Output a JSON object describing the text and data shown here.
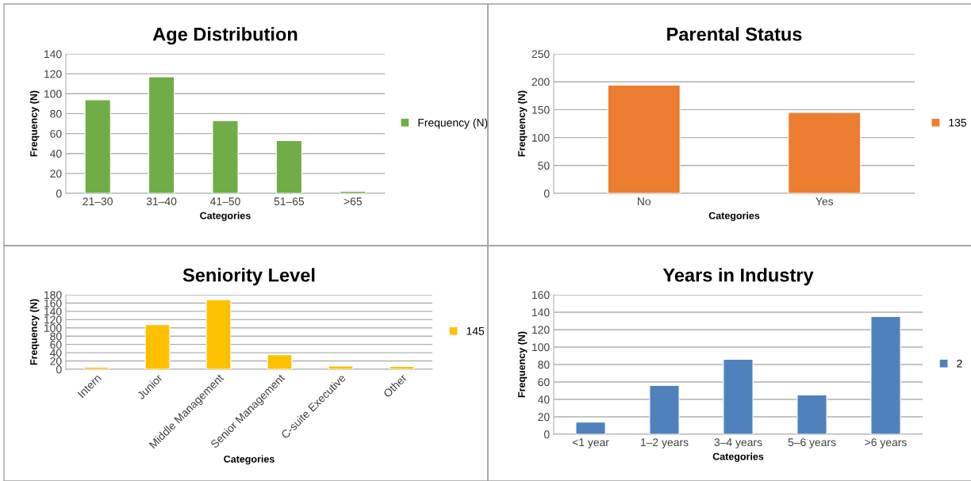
{
  "chart_data": [
    {
      "type": "bar",
      "title": "Age Distribution",
      "xlabel": "Categories",
      "ylabel": "Frequency (N)",
      "categories": [
        "21–30",
        "31–40",
        "41–50",
        "51–65",
        ">65"
      ],
      "series": [
        {
          "name": "Frequency (N)",
          "color": "#70ad47",
          "values": [
            94,
            117,
            73,
            53,
            2
          ]
        }
      ],
      "ylim": [
        0,
        140
      ],
      "yticks": [
        0,
        20,
        40,
        60,
        80,
        100,
        120,
        140
      ],
      "grid": "y",
      "legend": "right"
    },
    {
      "type": "bar",
      "title": "Parental Status",
      "xlabel": "Categories",
      "ylabel": "Frequency (N)",
      "categories": [
        "No",
        "Yes"
      ],
      "series": [
        {
          "name": "135",
          "color": "#ed7d31",
          "values": [
            194,
            145
          ]
        }
      ],
      "ylim": [
        0,
        250
      ],
      "yticks": [
        0,
        50,
        100,
        150,
        200,
        250
      ],
      "grid": "y",
      "legend": "right"
    },
    {
      "type": "bar",
      "title": "Seniority Level",
      "xlabel": "Categories",
      "ylabel": "Frequency (N)",
      "categories": [
        "Intern",
        "Junior",
        "Middle Management",
        "Senior Management",
        "C-suite Executive",
        "Other"
      ],
      "series": [
        {
          "name": "145",
          "color": "#ffc000",
          "values": [
            5,
            108,
            168,
            35,
            8,
            7
          ]
        }
      ],
      "ylim": [
        0,
        180
      ],
      "yticks": [
        0,
        20,
        40,
        60,
        80,
        100,
        120,
        140,
        160,
        180
      ],
      "grid": "y",
      "legend": "right"
    },
    {
      "type": "bar",
      "title": "Years in Industry",
      "xlabel": "Categories",
      "ylabel": "Frequency (N)",
      "categories": [
        "<1 year",
        "1–2 years",
        "3–4 years",
        "5–6 years",
        ">6 years"
      ],
      "series": [
        {
          "name": "2",
          "color": "#4f81bd",
          "values": [
            14,
            56,
            86,
            45,
            135
          ]
        }
      ],
      "ylim": [
        0,
        160
      ],
      "yticks": [
        0,
        20,
        40,
        60,
        80,
        100,
        120,
        140,
        160
      ],
      "grid": "y",
      "legend": "right"
    }
  ]
}
